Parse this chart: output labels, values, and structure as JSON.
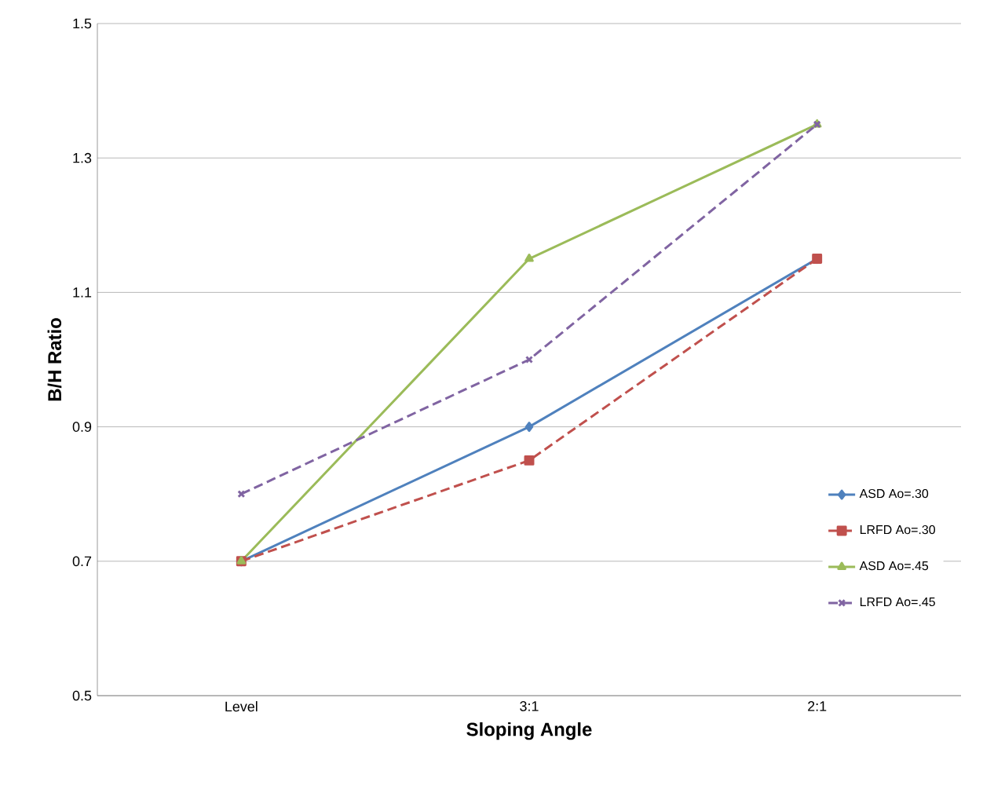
{
  "chart_data": {
    "type": "line",
    "xlabel": "Sloping Angle",
    "ylabel": "B/H Ratio",
    "categories": [
      "Level",
      "3:1",
      "2:1"
    ],
    "series": [
      {
        "name": "ASD Ao=.30",
        "color": "#4f81bd",
        "values": [
          0.7,
          0.9,
          1.15
        ],
        "marker": "diamond",
        "line_style": "solid"
      },
      {
        "name": "LRFD Ao=.30",
        "color": "#c0504d",
        "values": [
          0.7,
          0.85,
          1.15
        ],
        "marker": "square",
        "line_style": "dashed"
      },
      {
        "name": "ASD Ao=.45",
        "color": "#9bbb59",
        "values": [
          0.7,
          1.15,
          1.35
        ],
        "marker": "triangle",
        "line_style": "solid"
      },
      {
        "name": "LRFD Ao=.45",
        "color": "#8064a2",
        "values": [
          0.8,
          1.0,
          1.35
        ],
        "marker": "cross",
        "line_style": "dashed"
      }
    ],
    "ylim": [
      0.5,
      1.5
    ],
    "yticks": [
      0.5,
      0.7,
      0.9,
      1.1,
      1.3,
      1.5
    ],
    "grid": "y",
    "legend": "bottom right"
  }
}
